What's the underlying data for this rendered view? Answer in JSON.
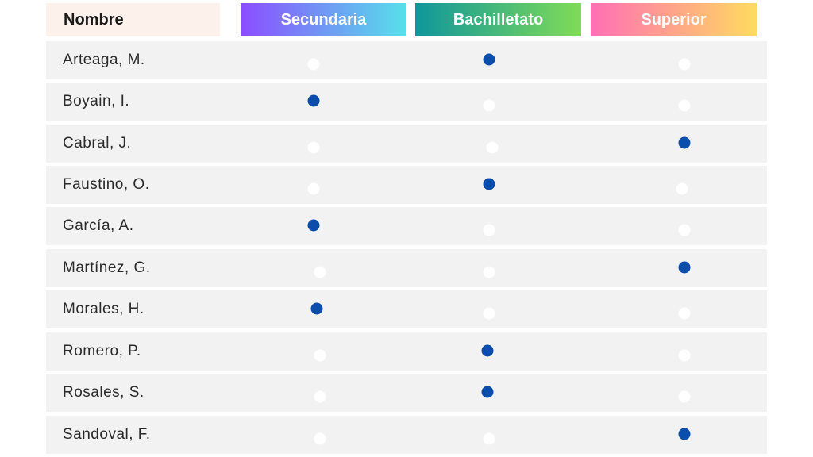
{
  "header": {
    "name": "Nombre",
    "levels": [
      "Secundaria",
      "Bachilletato",
      "Superior"
    ]
  },
  "colors": {
    "selected_dot": "#0b4dab",
    "unselected_dot": "#ffffff",
    "row_bg": "#f2f2f2"
  },
  "rows": [
    {
      "name": "Arteaga, M.",
      "level": "Bachilletato"
    },
    {
      "name": "Boyain, I.",
      "level": "Secundaria"
    },
    {
      "name": "Cabral, J.",
      "level": "Superior"
    },
    {
      "name": "Faustino, O.",
      "level": "Bachilletato"
    },
    {
      "name": "García, A.",
      "level": "Secundaria"
    },
    {
      "name": "Martínez, G.",
      "level": "Superior"
    },
    {
      "name": "Morales, H.",
      "level": "Secundaria"
    },
    {
      "name": "Romero, P.",
      "level": "Bachilletato"
    },
    {
      "name": "Rosales, S.",
      "level": "Bachilletato"
    },
    {
      "name": "Sandoval, F.",
      "level": "Superior"
    }
  ]
}
